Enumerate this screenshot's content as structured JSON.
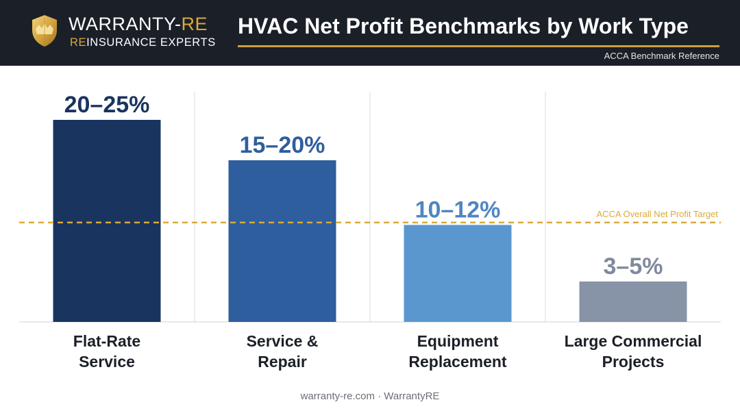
{
  "header": {
    "logo_name_primary": "WARRANTY-",
    "logo_name_accent": "RE",
    "logo_tag_accent": "RE",
    "logo_tag_rest": "INSURANCE EXPERTS",
    "title": "HVAC Net Profit Benchmarks by Work Type",
    "reference": "ACCA Benchmark Reference"
  },
  "chart_data": {
    "type": "bar",
    "categories": [
      [
        "Flat-Rate",
        "Service"
      ],
      [
        "Service &",
        "Repair"
      ],
      [
        "Equipment",
        "Replacement"
      ],
      [
        "Large Commercial",
        "Projects"
      ]
    ],
    "ranges": [
      [
        20,
        25
      ],
      [
        15,
        20
      ],
      [
        10,
        12
      ],
      [
        3,
        5
      ]
    ],
    "values": [
      25,
      20,
      12,
      5
    ],
    "value_labels": [
      "20–25%",
      "15–20%",
      "10–12%",
      "3–5%"
    ],
    "colors": [
      "#19345f",
      "#2f5e9e",
      "#5b97cf",
      "#8793a6"
    ],
    "label_colors": [
      "#19345f",
      "#2f5e9e",
      "#4f86c1",
      "#7f8a9c"
    ],
    "ylim": [
      0,
      30
    ],
    "grid": false,
    "reference_line": {
      "value": 12.3,
      "label": "ACCA Overall Net Profit Target",
      "color": "#d9aa3b",
      "style": "dashed"
    }
  },
  "footer": {
    "text": "warranty-re.com · WarrantyRE"
  }
}
